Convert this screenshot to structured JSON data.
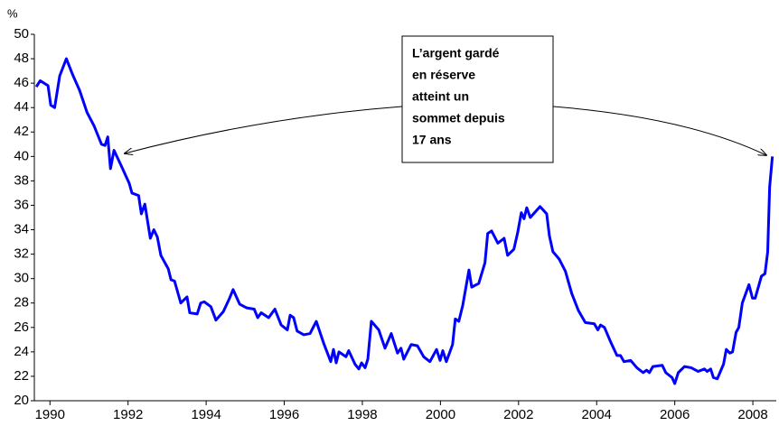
{
  "chart_data": {
    "type": "line",
    "y_label": "%",
    "annotation": [
      "L’argent gardé",
      "en réserve",
      "atteint un",
      "sommet depuis",
      "17 ans"
    ],
    "x": [
      1989.65,
      1989.75,
      1989.95,
      1990.02,
      1990.12,
      1990.25,
      1990.42,
      1990.58,
      1990.76,
      1990.95,
      1991.13,
      1991.32,
      1991.41,
      1991.48,
      1991.55,
      1991.64,
      1991.83,
      1992.03,
      1992.1,
      1992.27,
      1992.34,
      1992.43,
      1992.57,
      1992.66,
      1992.75,
      1992.84,
      1993.03,
      1993.1,
      1993.19,
      1993.35,
      1993.51,
      1993.58,
      1993.77,
      1993.86,
      1993.95,
      1994.12,
      1994.25,
      1994.44,
      1994.6,
      1994.69,
      1994.86,
      1995.04,
      1995.23,
      1995.32,
      1995.41,
      1995.6,
      1995.76,
      1995.92,
      1996.08,
      1996.15,
      1996.24,
      1996.33,
      1996.5,
      1996.66,
      1996.82,
      1997.01,
      1997.19,
      1997.26,
      1997.33,
      1997.4,
      1997.58,
      1997.65,
      1997.81,
      1997.91,
      1997.98,
      1998.07,
      1998.14,
      1998.23,
      1998.42,
      1998.58,
      1998.74,
      1998.9,
      1998.99,
      1999.06,
      1999.25,
      1999.41,
      1999.57,
      1999.73,
      1999.9,
      1999.99,
      2000.06,
      2000.15,
      2000.31,
      2000.38,
      2000.47,
      2000.57,
      2000.73,
      2000.8,
      2000.98,
      2001.14,
      2001.21,
      2001.31,
      2001.47,
      2001.63,
      2001.72,
      2001.88,
      2001.98,
      2002.07,
      2002.14,
      2002.21,
      2002.3,
      2002.55,
      2002.72,
      2002.79,
      2002.88,
      2003.04,
      2003.2,
      2003.36,
      2003.53,
      2003.71,
      2003.94,
      2004.03,
      2004.1,
      2004.2,
      2004.36,
      2004.52,
      2004.61,
      2004.7,
      2004.87,
      2005.03,
      2005.19,
      2005.28,
      2005.35,
      2005.44,
      2005.68,
      2005.77,
      2005.93,
      2006.0,
      2006.09,
      2006.25,
      2006.42,
      2006.6,
      2006.76,
      2006.83,
      2006.92,
      2006.99,
      2007.09,
      2007.25,
      2007.32,
      2007.41,
      2007.48,
      2007.57,
      2007.64,
      2007.73,
      2007.9,
      2007.99,
      2008.06,
      2008.22,
      2008.31,
      2008.38,
      2008.43,
      2008.5
    ],
    "series": [
      {
        "color": "#0000ff",
        "values": [
          45.7,
          46.2,
          45.8,
          44.2,
          44.0,
          46.6,
          48.0,
          46.7,
          45.4,
          43.6,
          42.5,
          41.0,
          40.9,
          41.6,
          39.0,
          40.5,
          39.2,
          37.8,
          37.0,
          36.8,
          35.3,
          36.1,
          33.3,
          34.0,
          33.4,
          31.9,
          30.8,
          29.9,
          29.8,
          28.0,
          28.5,
          27.2,
          27.1,
          28.0,
          28.1,
          27.7,
          26.6,
          27.3,
          28.4,
          29.1,
          27.9,
          27.6,
          27.5,
          26.8,
          27.2,
          26.8,
          27.5,
          26.2,
          25.8,
          27.0,
          26.8,
          25.7,
          25.4,
          25.5,
          26.5,
          24.7,
          23.2,
          24.2,
          23.1,
          24.0,
          23.6,
          24.1,
          23.0,
          22.6,
          23.1,
          22.7,
          23.4,
          26.5,
          25.8,
          24.3,
          25.5,
          23.9,
          24.3,
          23.4,
          24.6,
          24.5,
          23.6,
          23.2,
          24.2,
          23.3,
          24.1,
          23.2,
          24.6,
          26.7,
          26.5,
          27.8,
          30.7,
          29.3,
          29.6,
          31.3,
          33.7,
          33.9,
          32.9,
          33.3,
          31.9,
          32.4,
          33.8,
          35.4,
          34.9,
          35.8,
          35.0,
          35.9,
          35.3,
          33.5,
          32.2,
          31.6,
          30.6,
          28.8,
          27.4,
          26.4,
          26.3,
          25.8,
          26.2,
          26.0,
          24.8,
          23.7,
          23.7,
          23.2,
          23.3,
          22.7,
          22.3,
          22.5,
          22.3,
          22.8,
          22.9,
          22.3,
          21.9,
          21.4,
          22.3,
          22.8,
          22.7,
          22.4,
          22.6,
          22.4,
          22.6,
          21.9,
          21.8,
          23.0,
          24.2,
          23.9,
          24.0,
          25.6,
          26.0,
          28.0,
          29.5,
          28.4,
          28.4,
          30.2,
          30.4,
          32.2,
          37.5,
          40.0
        ]
      }
    ],
    "xlim": [
      1989.6,
      2008.6
    ],
    "xticks": [
      1990,
      1992,
      1994,
      1996,
      1998,
      2000,
      2002,
      2004,
      2006,
      2008
    ],
    "ylim": [
      20,
      50
    ],
    "yticks": [
      20,
      22,
      24,
      26,
      28,
      30,
      32,
      34,
      36,
      38,
      40,
      42,
      44,
      46,
      48,
      50
    ]
  }
}
